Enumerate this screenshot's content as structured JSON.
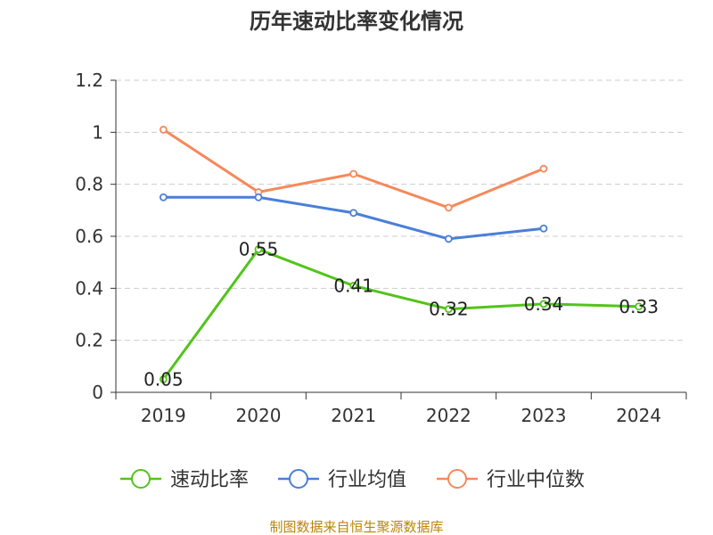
{
  "chart_data": {
    "type": "line",
    "title": "历年速动比率变化情况",
    "categories": [
      "2019",
      "2020",
      "2021",
      "2022",
      "2023",
      "2024"
    ],
    "ylim": [
      0,
      1.2
    ],
    "yticks": [
      "0",
      "0.2",
      "0.4",
      "0.6",
      "0.8",
      "1",
      "1.2"
    ],
    "grid": true,
    "legend_position": "bottom",
    "series": [
      {
        "name": "速动比率",
        "color": "#52c41a",
        "values": [
          0.05,
          0.55,
          0.41,
          0.32,
          0.34,
          0.33
        ],
        "labels": [
          "0.05",
          "0.55",
          "0.41",
          "0.32",
          "0.34",
          "0.33"
        ]
      },
      {
        "name": "行业均值",
        "color": "#4a7fd8",
        "values": [
          0.75,
          0.75,
          0.69,
          0.59,
          0.63,
          null
        ]
      },
      {
        "name": "行业中位数",
        "color": "#f5895a",
        "values": [
          1.01,
          0.77,
          0.84,
          0.71,
          0.86,
          null
        ]
      }
    ],
    "source": "制图数据来自恒生聚源数据库"
  }
}
